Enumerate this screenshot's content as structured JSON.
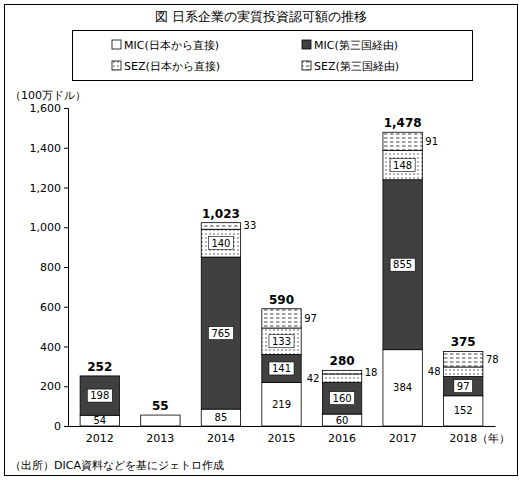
{
  "chart_data": {
    "type": "bar",
    "title": "図 日系企業の実質投資認可額の推移",
    "y_label": "（100万ドル）",
    "x_label": "（年）",
    "source": "（出所）DICA資料などを基にジェトロ作成",
    "categories": [
      "2012",
      "2013",
      "2014",
      "2015",
      "2016",
      "2017",
      "2018"
    ],
    "series": [
      {
        "name": "MIC(日本から直接)",
        "color": "#ffffff",
        "values": [
          54,
          55,
          85,
          219,
          60,
          384,
          152
        ],
        "value_labels": [
          "54",
          null,
          "85",
          "219",
          "60",
          "384",
          "152"
        ]
      },
      {
        "name": "MIC(第三国経由)",
        "color": "#404040",
        "values": [
          198,
          0,
          765,
          141,
          160,
          855,
          97
        ],
        "value_labels": [
          "198",
          null,
          "765",
          "141",
          "160",
          "855",
          "97"
        ]
      },
      {
        "name": "SEZ(日本から直接)",
        "color": "#ffffff",
        "values": [
          0,
          0,
          140,
          133,
          42,
          148,
          48
        ],
        "value_labels": [
          null,
          null,
          "140",
          "133",
          "42",
          "148",
          "48"
        ]
      },
      {
        "name": "SEZ(第三国経由)",
        "color": "#ffffff",
        "values": [
          0,
          0,
          33,
          97,
          18,
          91,
          78
        ],
        "value_labels": [
          null,
          null,
          "33",
          "97",
          "18",
          "91",
          "78"
        ]
      }
    ],
    "totals": [
      252,
      55,
      1023,
      590,
      280,
      1478,
      375
    ],
    "total_labels": [
      "252",
      "55",
      "1,023",
      "590",
      "280",
      "1,478",
      "375"
    ],
    "ylim": [
      0,
      1600
    ],
    "yticks": [
      0,
      200,
      400,
      600,
      800,
      {
        "value": 1000,
        "label": "1,000"
      },
      {
        "value": 1200,
        "label": "1,200"
      },
      {
        "value": 1400,
        "label": "1,400"
      },
      {
        "value": 1600,
        "label": "1,600"
      }
    ],
    "stacked": true,
    "data_labels": true,
    "legend": "top",
    "grid": false
  }
}
